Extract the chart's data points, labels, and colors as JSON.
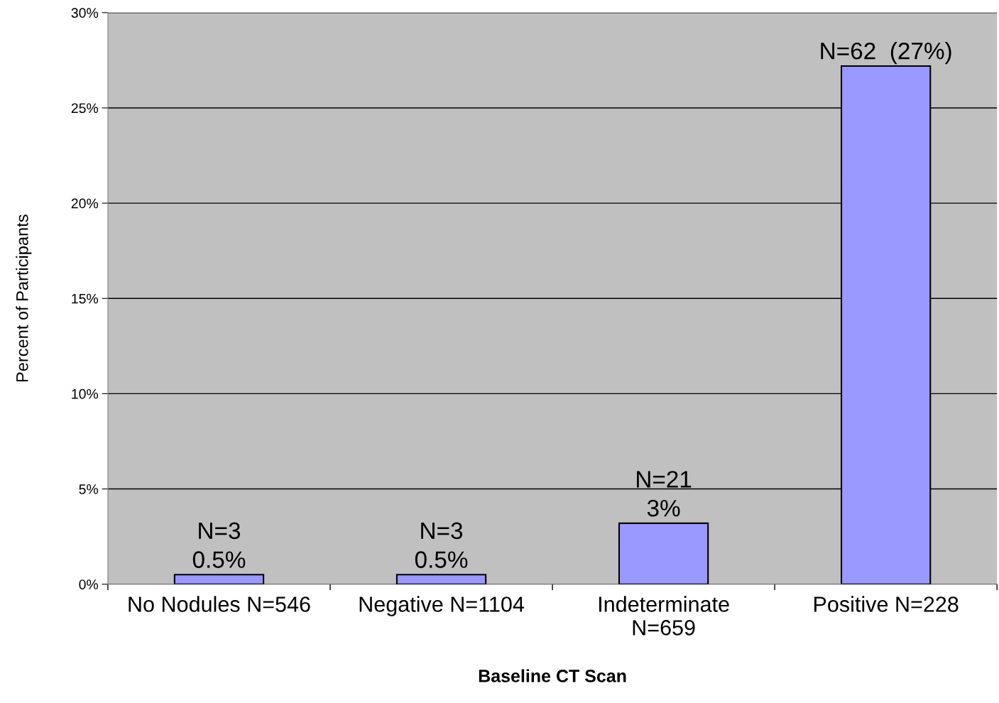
{
  "chart_data": {
    "type": "bar",
    "xlabel": "Baseline CT Scan",
    "ylabel": "Percent of Participants",
    "categories": [
      "No Nodules N=546",
      "Negative N=1104",
      "Indeterminate\nN=659",
      "Positive N=228"
    ],
    "values": [
      0.5,
      0.5,
      3.2,
      27.2
    ],
    "value_labels": [
      "N=3\n0.5%",
      "N=3\n0.5%",
      "N=21\n3%",
      "N=62  (27%)"
    ],
    "color": "#9999ff",
    "ylim": [
      0,
      30
    ],
    "yticks": [
      {
        "value": 0,
        "label": "0%"
      },
      {
        "value": 5,
        "label": "5%"
      },
      {
        "value": 10,
        "label": "10%"
      },
      {
        "value": 15,
        "label": "15%"
      },
      {
        "value": 20,
        "label": "20%"
      },
      {
        "value": 25,
        "label": "25%"
      },
      {
        "value": 30,
        "label": "30%"
      }
    ],
    "grid": "y",
    "legend": false
  }
}
